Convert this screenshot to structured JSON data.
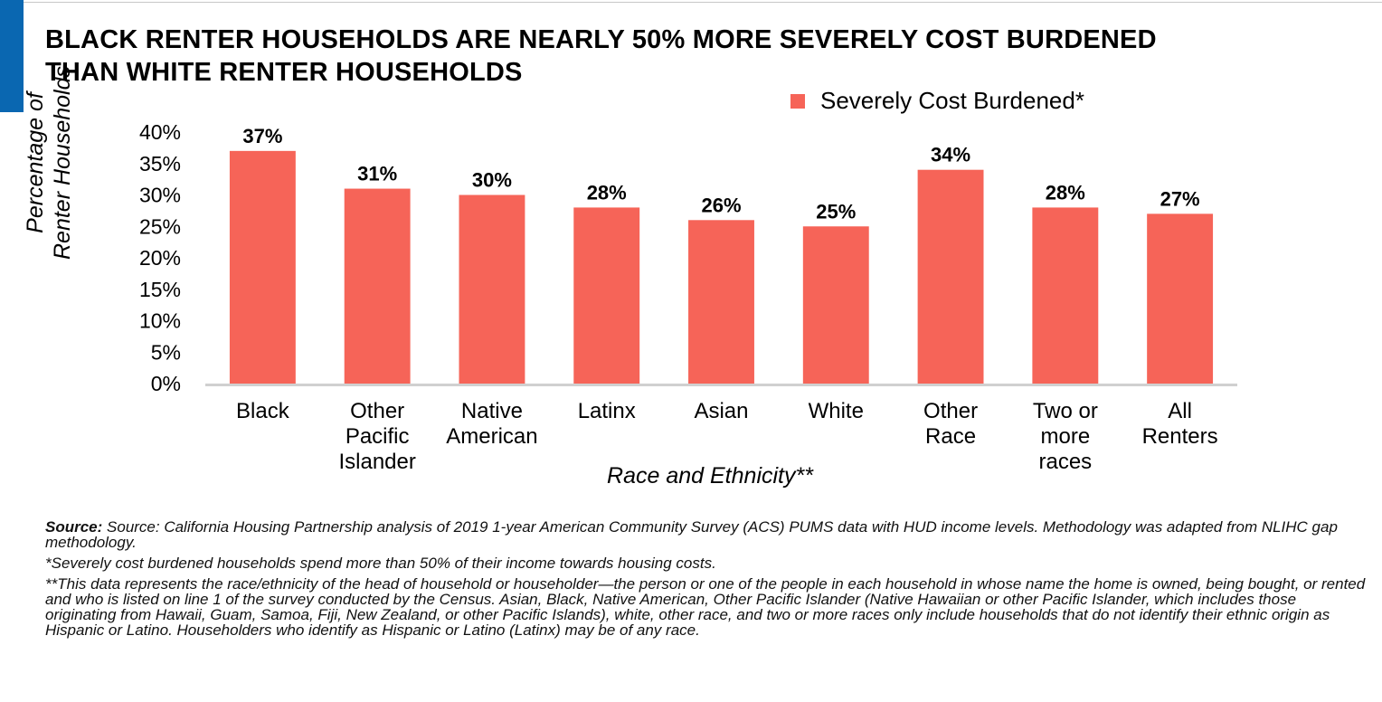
{
  "title_lines": [
    "BLACK RENTER HOUSEHOLDS ARE NEARLY 50% MORE SEVERELY COST BURDENED",
    "THAN WHITE RENTER HOUSEHOLDS"
  ],
  "colors": {
    "accent": "#0a67b1",
    "bar": "#f66458",
    "axis": "#d0d0d0"
  },
  "chart_data": {
    "type": "bar",
    "title": "BLACK RENTER HOUSEHOLDS ARE NEARLY 50% MORE SEVERELY COST BURDENED THAN WHITE RENTER HOUSEHOLDS",
    "categories": [
      [
        "Black"
      ],
      [
        "Other",
        "Pacific",
        "Islander"
      ],
      [
        "Native",
        "American"
      ],
      [
        "Latinx"
      ],
      [
        "Asian"
      ],
      [
        "White"
      ],
      [
        "Other",
        "Race"
      ],
      [
        "Two or",
        "more",
        "races"
      ],
      [
        "All",
        "Renters"
      ]
    ],
    "series": [
      {
        "name": "Severely Cost Burdened*",
        "values": [
          37,
          31,
          30,
          28,
          26,
          25,
          34,
          28,
          27
        ]
      }
    ],
    "data_labels": [
      "37%",
      "31%",
      "30%",
      "28%",
      "26%",
      "25%",
      "34%",
      "28%",
      "27%"
    ],
    "xlabel": "Race and Ethnicity**",
    "ylabel": [
      "Percentage of",
      "Renter Households"
    ],
    "ylim": [
      0,
      40
    ],
    "yticks": [
      "0%",
      "5%",
      "10%",
      "15%",
      "20%",
      "25%",
      "30%",
      "35%",
      "40%"
    ],
    "grid": false,
    "legend": "top-right"
  },
  "notes": {
    "source_label": "Source:",
    "source_text": " Source: California Housing Partnership analysis of 2019 1-year American Community Survey (ACS) PUMS data with HUD income levels. Methodology was adapted from NLIHC gap methodology.",
    "footnote1": "*Severely cost burdened households spend more than 50% of their income towards housing costs.",
    "footnote2": "**This data represents the race/ethnicity of the head of household or householder—the person or one of the people in each household in whose name the home is owned, being bought, or rented and who is listed on line 1 of the survey conducted by the Census. Asian, Black, Native American, Other Pacific Islander (Native Hawaiian or other Pacific Islander, which includes those originating from Hawaii, Guam, Samoa, Fiji, New Zealand, or other Pacific Islands), white, other race, and two or more races only include households that do not identify their ethnic origin as Hispanic or Latino. Householders who identify as Hispanic or Latino (Latinx) may be of any race."
  }
}
